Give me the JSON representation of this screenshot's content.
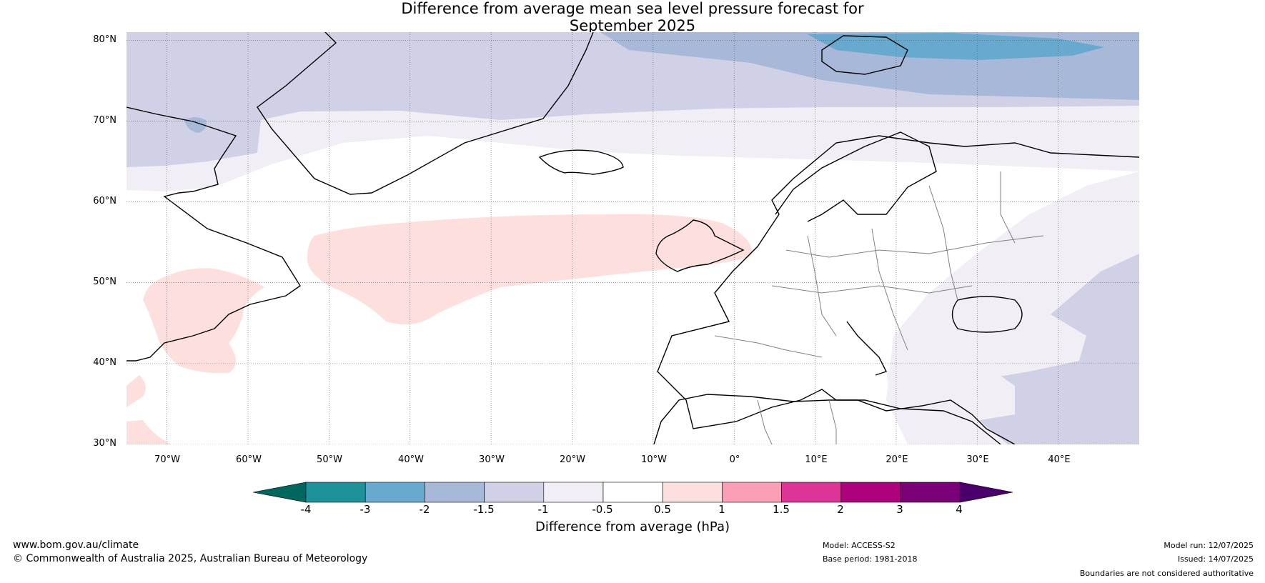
{
  "title": {
    "line1": "Difference from average mean sea level pressure forecast for",
    "line2": "September 2025"
  },
  "map": {
    "latitude_labels": [
      "80°N",
      "70°N",
      "60°N",
      "50°N",
      "40°N",
      "30°N"
    ],
    "longitude_labels": [
      "70°W",
      "60°W",
      "50°W",
      "40°W",
      "30°W",
      "20°W",
      "10°W",
      "0°",
      "10°E",
      "20°E",
      "30°E",
      "40°E"
    ],
    "extent": {
      "lon": [
        -75,
        50
      ],
      "lat": [
        30,
        81
      ]
    },
    "colors": {
      "neg_2_to_1_5": "#a8b8d8",
      "neg_3_to_2": "#67a9cf",
      "neg_1_5_to_1": "#d0d1e6",
      "neg_1_to_0_5": "#f1eef6",
      "pos_0_5_to_1": "#fde0dd",
      "land_outline": "#000000",
      "border": "#808080"
    }
  },
  "colorbar": {
    "ticks": [
      "-4",
      "-3",
      "-2",
      "-1.5",
      "-1",
      "-0.5",
      "0.5",
      "1",
      "1.5",
      "2",
      "3",
      "4"
    ],
    "colors": [
      "#01665e",
      "#1f9199",
      "#67a9cf",
      "#a8b8d8",
      "#d0d1e6",
      "#f1eef6",
      "#ffffff",
      "#fde0dd",
      "#fa9fb5",
      "#dd3497",
      "#ae017e",
      "#7a0177",
      "#49006a"
    ],
    "label": "Difference from average (hPa)"
  },
  "footer": {
    "website": "www.bom.gov.au/climate",
    "copyright": "© Commonwealth of Australia 2025, Australian Bureau of Meteorology",
    "model": "Model: ACCESS-S2",
    "base_period": "Base period: 1981-2018",
    "model_run": "Model run: 12/07/2025",
    "issued": "Issued: 14/07/2025",
    "disclaimer": "Boundaries are not considered authoritative"
  }
}
